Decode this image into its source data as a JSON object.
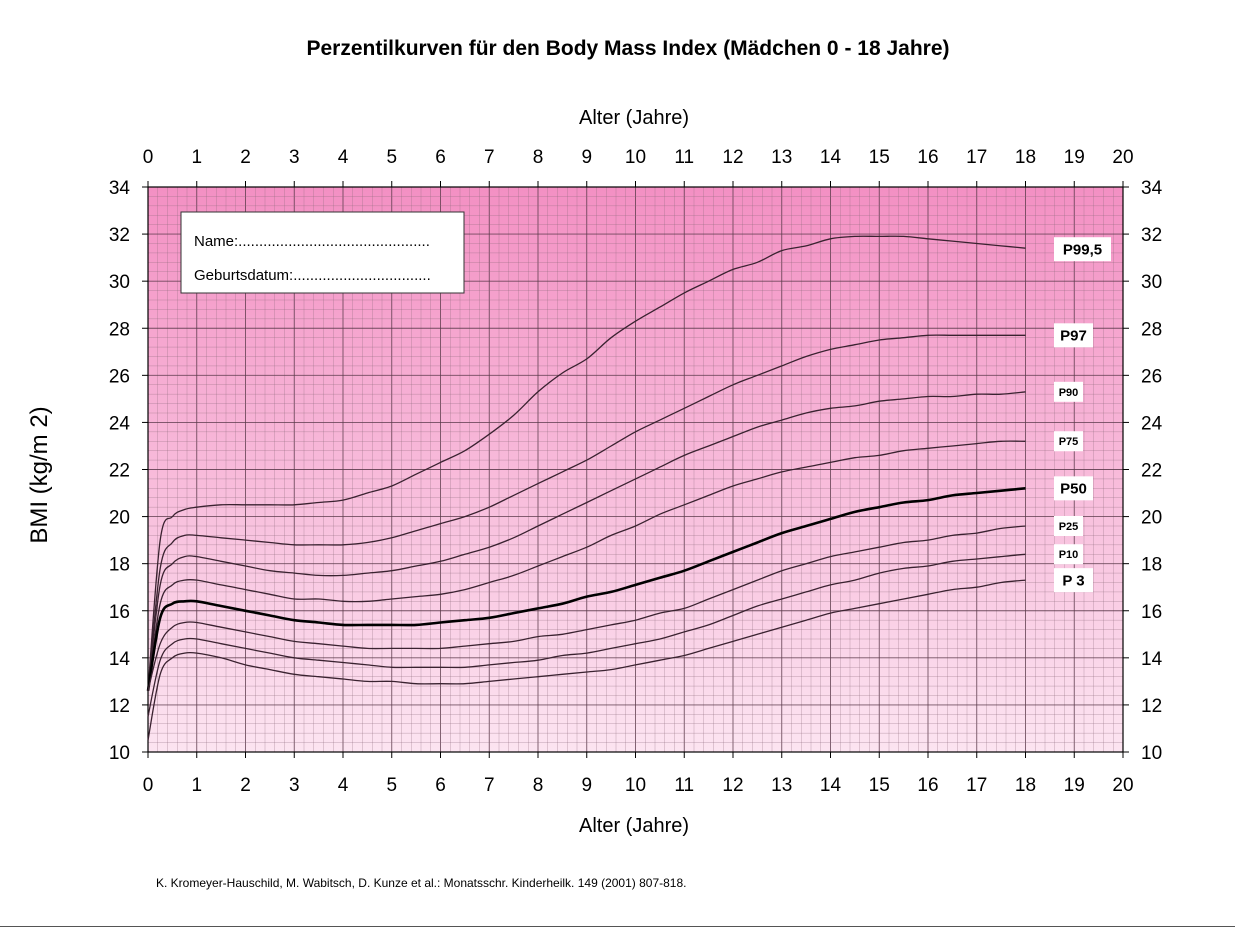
{
  "chart_data": {
    "type": "line",
    "title": "Perzentilkurven für den Body Mass Index (Mädchen 0 - 18 Jahre)",
    "xlabel": "Alter (Jahre)",
    "ylabel": "BMI (kg/m 2)",
    "xlim": [
      0,
      20
    ],
    "ylim": [
      10,
      34
    ],
    "x_ticks": [
      "0",
      "1",
      "2",
      "3",
      "4",
      "5",
      "6",
      "7",
      "8",
      "9",
      "10",
      "11",
      "12",
      "13",
      "14",
      "15",
      "16",
      "17",
      "18",
      "19",
      "20"
    ],
    "y_ticks": [
      "10",
      "12",
      "14",
      "16",
      "18",
      "20",
      "22",
      "24",
      "26",
      "28",
      "30",
      "32",
      "34"
    ],
    "grid": true,
    "background_gradient": [
      "#f390c3",
      "#fce4f1"
    ],
    "form": {
      "name_label": "Name:..............................................",
      "birth_label": "Geburtsdatum:................................."
    },
    "source": "K. Kromeyer-Hauschild, M. Wabitsch, D. Kunze et al.: Monatsschr. Kinderheilk. 149 (2001) 807-818.",
    "series": [
      {
        "name": "P99,5",
        "bold": false,
        "label_size": 15,
        "x": [
          0,
          0.25,
          0.5,
          0.75,
          1,
          1.5,
          2,
          2.5,
          3,
          3.5,
          4,
          4.5,
          5,
          5.5,
          6,
          6.5,
          7,
          7.5,
          8,
          8.5,
          9,
          9.5,
          10,
          10.5,
          11,
          11.5,
          12,
          12.5,
          13,
          13.5,
          14,
          14.5,
          15,
          15.5,
          16,
          16.5,
          17,
          17.5,
          18
        ],
        "y": [
          12.6,
          19.0,
          20.0,
          20.3,
          20.4,
          20.5,
          20.5,
          20.5,
          20.5,
          20.6,
          20.7,
          21.0,
          21.3,
          21.8,
          22.3,
          22.8,
          23.5,
          24.3,
          25.3,
          26.1,
          26.7,
          27.6,
          28.3,
          28.9,
          29.5,
          30.0,
          30.5,
          30.8,
          31.3,
          31.5,
          31.8,
          31.9,
          31.9,
          31.9,
          31.8,
          31.7,
          31.6,
          31.5,
          31.4
        ]
      },
      {
        "name": "P97",
        "bold": false,
        "label_size": 15,
        "x": [
          0,
          0.25,
          0.5,
          0.75,
          1,
          1.5,
          2,
          2.5,
          3,
          3.5,
          4,
          4.5,
          5,
          5.5,
          6,
          6.5,
          7,
          7.5,
          8,
          8.5,
          9,
          9.5,
          10,
          10.5,
          11,
          11.5,
          12,
          12.5,
          13,
          13.5,
          14,
          14.5,
          15,
          15.5,
          16,
          16.5,
          17,
          17.5,
          18
        ],
        "y": [
          12.6,
          17.8,
          18.9,
          19.2,
          19.2,
          19.1,
          19.0,
          18.9,
          18.8,
          18.8,
          18.8,
          18.9,
          19.1,
          19.4,
          19.7,
          20.0,
          20.4,
          20.9,
          21.4,
          21.9,
          22.4,
          23.0,
          23.6,
          24.1,
          24.6,
          25.1,
          25.6,
          26.0,
          26.4,
          26.8,
          27.1,
          27.3,
          27.5,
          27.6,
          27.7,
          27.7,
          27.7,
          27.7,
          27.7
        ]
      },
      {
        "name": "P90",
        "bold": false,
        "label_size": 11,
        "x": [
          0,
          0.25,
          0.5,
          0.75,
          1,
          1.5,
          2,
          2.5,
          3,
          3.5,
          4,
          4.5,
          5,
          5.5,
          6,
          6.5,
          7,
          7.5,
          8,
          8.5,
          9,
          9.5,
          10,
          10.5,
          11,
          11.5,
          12,
          12.5,
          13,
          13.5,
          14,
          14.5,
          15,
          15.5,
          16,
          16.5,
          17,
          17.5,
          18
        ],
        "y": [
          12.6,
          17.1,
          18.0,
          18.3,
          18.3,
          18.1,
          17.9,
          17.7,
          17.6,
          17.5,
          17.5,
          17.6,
          17.7,
          17.9,
          18.1,
          18.4,
          18.7,
          19.1,
          19.6,
          20.1,
          20.6,
          21.1,
          21.6,
          22.1,
          22.6,
          23.0,
          23.4,
          23.8,
          24.1,
          24.4,
          24.6,
          24.7,
          24.9,
          25.0,
          25.1,
          25.1,
          25.2,
          25.2,
          25.3
        ]
      },
      {
        "name": "P75",
        "bold": false,
        "label_size": 11,
        "x": [
          0,
          0.25,
          0.5,
          0.75,
          1,
          1.5,
          2,
          2.5,
          3,
          3.5,
          4,
          4.5,
          5,
          5.5,
          6,
          6.5,
          7,
          7.5,
          8,
          8.5,
          9,
          9.5,
          10,
          10.5,
          11,
          11.5,
          12,
          12.5,
          13,
          13.5,
          14,
          14.5,
          15,
          15.5,
          16,
          16.5,
          17,
          17.5,
          18
        ],
        "y": [
          12.6,
          16.3,
          17.1,
          17.3,
          17.3,
          17.1,
          16.9,
          16.7,
          16.5,
          16.5,
          16.4,
          16.4,
          16.5,
          16.6,
          16.7,
          16.9,
          17.2,
          17.5,
          17.9,
          18.3,
          18.7,
          19.2,
          19.6,
          20.1,
          20.5,
          20.9,
          21.3,
          21.6,
          21.9,
          22.1,
          22.3,
          22.5,
          22.6,
          22.8,
          22.9,
          23.0,
          23.1,
          23.2,
          23.2
        ]
      },
      {
        "name": "P50",
        "bold": true,
        "label_size": 15,
        "x": [
          0,
          0.25,
          0.5,
          0.75,
          1,
          1.5,
          2,
          2.5,
          3,
          3.5,
          4,
          4.5,
          5,
          5.5,
          6,
          6.5,
          7,
          7.5,
          8,
          8.5,
          9,
          9.5,
          10,
          10.5,
          11,
          11.5,
          12,
          12.5,
          13,
          13.5,
          14,
          14.5,
          15,
          15.5,
          16,
          16.5,
          17,
          17.5,
          18
        ],
        "y": [
          12.6,
          15.7,
          16.3,
          16.4,
          16.4,
          16.2,
          16.0,
          15.8,
          15.6,
          15.5,
          15.4,
          15.4,
          15.4,
          15.4,
          15.5,
          15.6,
          15.7,
          15.9,
          16.1,
          16.3,
          16.6,
          16.8,
          17.1,
          17.4,
          17.7,
          18.1,
          18.5,
          18.9,
          19.3,
          19.6,
          19.9,
          20.2,
          20.4,
          20.6,
          20.7,
          20.9,
          21.0,
          21.1,
          21.2
        ]
      },
      {
        "name": "P25",
        "bold": false,
        "label_size": 11,
        "x": [
          0,
          0.25,
          0.5,
          0.75,
          1,
          1.5,
          2,
          2.5,
          3,
          3.5,
          4,
          4.5,
          5,
          5.5,
          6,
          6.5,
          7,
          7.5,
          8,
          8.5,
          9,
          9.5,
          10,
          10.5,
          11,
          11.5,
          12,
          12.5,
          13,
          13.5,
          14,
          14.5,
          15,
          15.5,
          16,
          16.5,
          17,
          17.5,
          18
        ],
        "y": [
          12.6,
          14.6,
          15.3,
          15.5,
          15.5,
          15.3,
          15.1,
          14.9,
          14.7,
          14.6,
          14.5,
          14.4,
          14.4,
          14.4,
          14.4,
          14.5,
          14.6,
          14.7,
          14.9,
          15.0,
          15.2,
          15.4,
          15.6,
          15.9,
          16.1,
          16.5,
          16.9,
          17.3,
          17.7,
          18.0,
          18.3,
          18.5,
          18.7,
          18.9,
          19.0,
          19.2,
          19.3,
          19.5,
          19.6
        ]
      },
      {
        "name": "P10",
        "bold": false,
        "label_size": 11,
        "x": [
          0,
          0.25,
          0.5,
          0.75,
          1,
          1.5,
          2,
          2.5,
          3,
          3.5,
          4,
          4.5,
          5,
          5.5,
          6,
          6.5,
          7,
          7.5,
          8,
          8.5,
          9,
          9.5,
          10,
          10.5,
          11,
          11.5,
          12,
          12.5,
          13,
          13.5,
          14,
          14.5,
          15,
          15.5,
          16,
          16.5,
          17,
          17.5,
          18
        ],
        "y": [
          11.5,
          13.9,
          14.6,
          14.8,
          14.8,
          14.6,
          14.4,
          14.2,
          14.0,
          13.9,
          13.8,
          13.7,
          13.6,
          13.6,
          13.6,
          13.6,
          13.7,
          13.8,
          13.9,
          14.1,
          14.2,
          14.4,
          14.6,
          14.8,
          15.1,
          15.4,
          15.8,
          16.2,
          16.5,
          16.8,
          17.1,
          17.3,
          17.6,
          17.8,
          17.9,
          18.1,
          18.2,
          18.3,
          18.4
        ]
      },
      {
        "name": "P 3",
        "bold": false,
        "label_size": 15,
        "x": [
          0,
          0.25,
          0.5,
          0.75,
          1,
          1.5,
          2,
          2.5,
          3,
          3.5,
          4,
          4.5,
          5,
          5.5,
          6,
          6.5,
          7,
          7.5,
          8,
          8.5,
          9,
          9.5,
          10,
          10.5,
          11,
          11.5,
          12,
          12.5,
          13,
          13.5,
          14,
          14.5,
          15,
          15.5,
          16,
          16.5,
          17,
          17.5,
          18
        ],
        "y": [
          10.5,
          13.3,
          14.0,
          14.2,
          14.2,
          14.0,
          13.7,
          13.5,
          13.3,
          13.2,
          13.1,
          13.0,
          13.0,
          12.9,
          12.9,
          12.9,
          13.0,
          13.1,
          13.2,
          13.3,
          13.4,
          13.5,
          13.7,
          13.9,
          14.1,
          14.4,
          14.7,
          15.0,
          15.3,
          15.6,
          15.9,
          16.1,
          16.3,
          16.5,
          16.7,
          16.9,
          17.0,
          17.2,
          17.3
        ]
      }
    ]
  }
}
